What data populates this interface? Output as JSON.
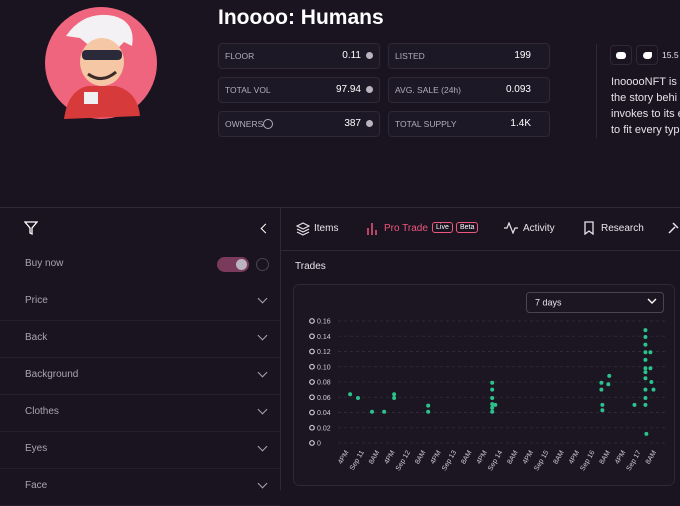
{
  "header": {
    "title": "Inoooo: Humans",
    "stats": [
      {
        "label": "FLOOR",
        "value": "0.11"
      },
      {
        "label": "LISTED",
        "value": "199"
      },
      {
        "label": "TOTAL VOL",
        "value": "97.94"
      },
      {
        "label": "AVG. SALE (24h)",
        "value": "0.093"
      },
      {
        "label": "OWNERS",
        "value": "387"
      },
      {
        "label": "TOTAL SUPPLY",
        "value": "1.4K"
      }
    ],
    "social_count": "15.5",
    "description": [
      "InooooNFT is",
      "the story behi",
      "invokes to its e",
      "to fit every typ"
    ]
  },
  "sidebar": {
    "buy_now": "Buy now",
    "filters": [
      "Price",
      "Back",
      "Background",
      "Clothes",
      "Eyes",
      "Face"
    ]
  },
  "tabs": {
    "items": "Items",
    "pro_trade": "Pro Trade",
    "live": "Live",
    "beta": "Beta",
    "activity": "Activity",
    "research": "Research"
  },
  "panel": {
    "title": "Trades",
    "period": "7 days"
  },
  "chart_data": {
    "type": "scatter",
    "color": "#2cc28c",
    "grid": true,
    "x": [
      -7.3,
      -3.2,
      4.1,
      10.4,
      15.6,
      15.6,
      33.3,
      33.3,
      66.6,
      66.6,
      66.6,
      66.6,
      66.6,
      66.6,
      68.2,
      123.4,
      123.4,
      123.9,
      123.9,
      127.0,
      127.5,
      140.6,
      146.3,
      146.3,
      146.3,
      146.3,
      146.3,
      146.3,
      146.3,
      146.3,
      146.3,
      146.3,
      146.3,
      146.8,
      148.9,
      148.9,
      149.4,
      150.5
    ],
    "values": [
      0.064,
      0.059,
      0.041,
      0.041,
      0.059,
      0.064,
      0.049,
      0.041,
      0.079,
      0.07,
      0.059,
      0.051,
      0.046,
      0.041,
      0.05,
      0.079,
      0.07,
      0.05,
      0.043,
      0.077,
      0.088,
      0.05,
      0.148,
      0.139,
      0.129,
      0.119,
      0.109,
      0.098,
      0.093,
      0.085,
      0.07,
      0.059,
      0.05,
      0.012,
      0.119,
      0.098,
      0.08,
      0.07
    ],
    "xlim": [
      -24,
      157
    ],
    "xticks": [
      {
        "value": -8,
        "label": "4PM"
      },
      {
        "value": 0,
        "label": "Sep 11"
      },
      {
        "value": 8,
        "label": "8AM"
      },
      {
        "value": 16,
        "label": "4PM"
      },
      {
        "value": 24,
        "label": "Sep 12"
      },
      {
        "value": 32,
        "label": "8AM"
      },
      {
        "value": 40,
        "label": "4PM"
      },
      {
        "value": 48,
        "label": "Sep 13"
      },
      {
        "value": 56,
        "label": "8AM"
      },
      {
        "value": 64,
        "label": "4PM"
      },
      {
        "value": 72,
        "label": "Sep 14"
      },
      {
        "value": 80,
        "label": "8AM"
      },
      {
        "value": 88,
        "label": "4PM"
      },
      {
        "value": 96,
        "label": "Sep 15"
      },
      {
        "value": 104,
        "label": "8AM"
      },
      {
        "value": 112,
        "label": "4PM"
      },
      {
        "value": 120,
        "label": "Sep 16"
      },
      {
        "value": 128,
        "label": "8AM"
      },
      {
        "value": 136,
        "label": "4PM"
      },
      {
        "value": 144,
        "label": "Sep 17"
      },
      {
        "value": 152,
        "label": "8AM"
      }
    ],
    "ylim": [
      0,
      0.16
    ],
    "yticks": [
      0,
      0.02,
      0.04,
      0.06,
      0.08,
      {
        "value": 0.1,
        "label": "0.10"
      },
      0.12,
      0.14,
      0.16
    ]
  }
}
